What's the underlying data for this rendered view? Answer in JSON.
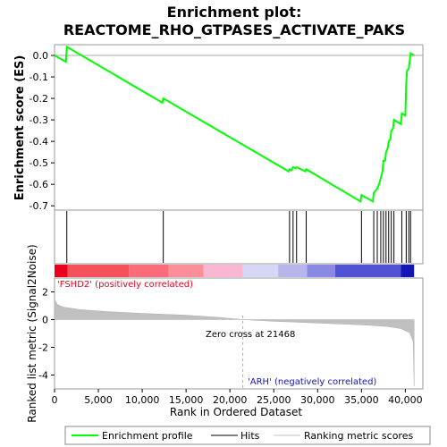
{
  "chart_data": {
    "type": "line",
    "title_line1": "Enrichment plot:",
    "title_line2": "REACTOME_RHO_GTPASES_ACTIVATE_PAKS",
    "es_panel": {
      "ylabel": "Enrichment score (ES)",
      "ylim": [
        -0.72,
        0.05
      ],
      "yticks": [
        0.0,
        -0.1,
        -0.2,
        -0.3,
        -0.4,
        -0.5,
        -0.6,
        -0.7
      ],
      "ytick_labels": [
        "0.0",
        "-0.1",
        "-0.2",
        "-0.3",
        "-0.4",
        "-0.5",
        "-0.6",
        "-0.7"
      ],
      "profile_color": "#00ff00",
      "profile": [
        [
          0,
          0.0
        ],
        [
          1300,
          -0.03
        ],
        [
          1400,
          0.04
        ],
        [
          12300,
          -0.22
        ],
        [
          12400,
          -0.2
        ],
        [
          26700,
          -0.54
        ],
        [
          26800,
          -0.53
        ],
        [
          27000,
          -0.535
        ],
        [
          27200,
          -0.52
        ],
        [
          27500,
          -0.525
        ],
        [
          27600,
          -0.52
        ],
        [
          28600,
          -0.54
        ],
        [
          28700,
          -0.53
        ],
        [
          34900,
          -0.68
        ],
        [
          35000,
          -0.65
        ],
        [
          36300,
          -0.68
        ],
        [
          36400,
          -0.64
        ],
        [
          36800,
          -0.62
        ],
        [
          37000,
          -0.6
        ],
        [
          37200,
          -0.57
        ],
        [
          37400,
          -0.54
        ],
        [
          37500,
          -0.49
        ],
        [
          37700,
          -0.49
        ],
        [
          37800,
          -0.45
        ],
        [
          38000,
          -0.43
        ],
        [
          38100,
          -0.4
        ],
        [
          38300,
          -0.39
        ],
        [
          38400,
          -0.35
        ],
        [
          38600,
          -0.34
        ],
        [
          38700,
          -0.3
        ],
        [
          39500,
          -0.32
        ],
        [
          39600,
          -0.27
        ],
        [
          40000,
          -0.28
        ],
        [
          40100,
          -0.13
        ],
        [
          40200,
          -0.07
        ],
        [
          40400,
          -0.06
        ],
        [
          40600,
          0.01
        ],
        [
          41000,
          0.0
        ]
      ]
    },
    "hits": [
      1400,
      12400,
      26800,
      27200,
      27600,
      28700,
      35000,
      36400,
      36800,
      37200,
      37500,
      37800,
      38100,
      38400,
      38700,
      39600,
      40100,
      40400,
      40600
    ],
    "ranked_panel": {
      "ylabel": "Ranked list metric (Signal2Noise)",
      "ylim": [
        -5.0,
        3.0
      ],
      "yticks": [
        2,
        0,
        -2,
        -4
      ],
      "ytick_labels": [
        "2",
        "0",
        "-2",
        "-4"
      ],
      "metric_curve": [
        [
          0,
          1.5
        ],
        [
          300,
          1.1
        ],
        [
          1000,
          0.9
        ],
        [
          3000,
          0.72
        ],
        [
          6000,
          0.58
        ],
        [
          10000,
          0.45
        ],
        [
          15000,
          0.32
        ],
        [
          19000,
          0.15
        ],
        [
          21468,
          0.0
        ],
        [
          25000,
          -0.12
        ],
        [
          30000,
          -0.25
        ],
        [
          35000,
          -0.38
        ],
        [
          38000,
          -0.5
        ],
        [
          39500,
          -0.65
        ],
        [
          40500,
          -0.95
        ],
        [
          40900,
          -1.6
        ],
        [
          41000,
          -4.8
        ]
      ],
      "positive_label": "'FSHD2' (positively correlated)",
      "negative_label": "'ARH' (negatively correlated)",
      "zero_cross_label": "Zero cross at 21468",
      "zero_cross": 21468
    },
    "heat_bar": [
      {
        "from": 0,
        "to": 1500,
        "color": "#e8001c"
      },
      {
        "from": 1500,
        "to": 8500,
        "color": "#f5515a"
      },
      {
        "from": 8500,
        "to": 13000,
        "color": "#fa6c7a"
      },
      {
        "from": 13000,
        "to": 17000,
        "color": "#fc8e9a"
      },
      {
        "from": 17000,
        "to": 21500,
        "color": "#fbb7d2"
      },
      {
        "from": 21500,
        "to": 25500,
        "color": "#d8d6f6"
      },
      {
        "from": 25500,
        "to": 28800,
        "color": "#b6b6ec"
      },
      {
        "from": 28800,
        "to": 32000,
        "color": "#8a8ae2"
      },
      {
        "from": 32000,
        "to": 39500,
        "color": "#5252d4"
      },
      {
        "from": 39500,
        "to": 41000,
        "color": "#1414b8"
      }
    ],
    "x_axis": {
      "xlabel": "Rank in Ordered Dataset",
      "xlim": [
        0,
        42000
      ],
      "xticks": [
        0,
        5000,
        10000,
        15000,
        20000,
        25000,
        30000,
        35000,
        40000
      ],
      "xtick_labels": [
        "0",
        "5,000",
        "10,000",
        "15,000",
        "20,000",
        "25,000",
        "30,000",
        "35,000",
        "40,000"
      ]
    },
    "legend": {
      "placement": "bottom",
      "items": [
        {
          "label": "Enrichment profile",
          "color": "#00ff00"
        },
        {
          "label": "Hits",
          "color": "#000000"
        },
        {
          "label": "Ranking metric scores",
          "color": "#c0c0c0"
        }
      ]
    }
  }
}
